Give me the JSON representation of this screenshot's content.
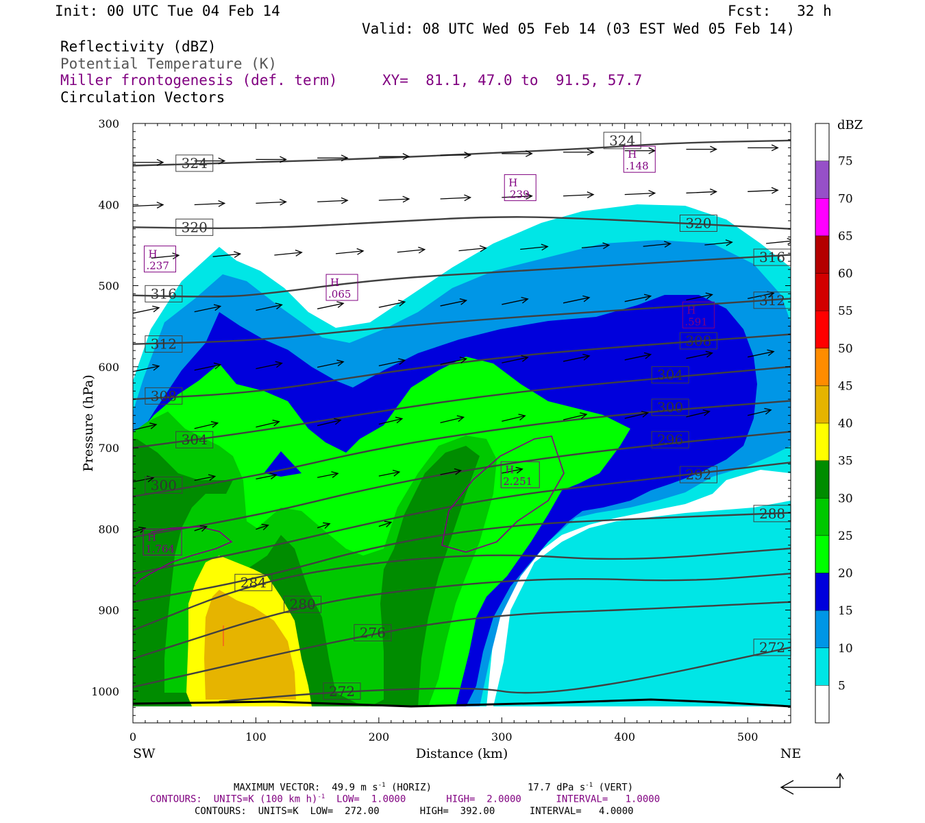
{
  "header": {
    "init": "Init: 00 UTC Tue 04 Feb 14",
    "fcst": "Fcst:   32 h",
    "valid": "Valid: 08 UTC Wed 05 Feb 14 (03 EST Wed 05 Feb 14)",
    "fields": [
      "Reflectivity (dBZ)",
      "Potential Temperature (K)",
      "Miller frontogenesis (def. term)",
      "Circulation Vectors"
    ],
    "xy": "XY=  81.1, 47.0 to  91.5, 57.7"
  },
  "colors": {
    "frontogenesis": "#800080",
    "theta": "#404040",
    "dbz_bins": [
      "#ffffff",
      "#00e6e6",
      "#0096e6",
      "#0000dc",
      "#00ff00",
      "#00c800",
      "#008c00",
      "#ffff00",
      "#e6b400",
      "#ff8c00",
      "#ff0000",
      "#d20000",
      "#b40000",
      "#ff00ff",
      "#9650c8",
      "#ffffff"
    ]
  },
  "footer": {
    "max_vector": "MAXIMUM VECTOR:  49.9 m s",
    "max_vector_h_unit": "(HORIZ)",
    "max_vector_v": "17.7 dPa s",
    "max_vector_v_unit": "(VERT)",
    "contours1": "CONTOURS:  UNITS=K (100 km h)",
    "contours1_rest": "  LOW=  1.0000       HIGH=  2.0000      INTERVAL=   1.0000",
    "contours2": "CONTOURS:  UNITS=K  LOW=  272.00       HIGH=  392.00      INTERVAL=   4.0000"
  },
  "chart_data": {
    "type": "cross-section",
    "xlabel": "Distance (km)",
    "ylabel": "Pressure (hPa)",
    "xlim": [
      0,
      535
    ],
    "ylim": [
      300,
      1040
    ],
    "x_ticks": [
      0,
      100,
      200,
      300,
      400,
      500
    ],
    "y_ticks": [
      300,
      400,
      500,
      600,
      700,
      800,
      900,
      1000
    ],
    "x_end_labels": [
      "SW",
      "NE"
    ],
    "colorbar": {
      "title": "dBZ",
      "levels": [
        5,
        10,
        15,
        20,
        25,
        30,
        35,
        40,
        45,
        50,
        55,
        60,
        65,
        70,
        75
      ]
    },
    "theta_contours": [
      {
        "value": 324,
        "label_pts": [
          [
            50,
            349
          ],
          [
            398,
            321
          ]
        ],
        "points": [
          [
            0,
            352
          ],
          [
            100,
            348
          ],
          [
            200,
            343
          ],
          [
            300,
            336
          ],
          [
            380,
            330
          ],
          [
            440,
            324
          ],
          [
            535,
            321
          ]
        ]
      },
      {
        "value": 320,
        "label_pts": [
          [
            50,
            428
          ],
          [
            460,
            423
          ]
        ],
        "points": [
          [
            0,
            428
          ],
          [
            100,
            430
          ],
          [
            200,
            422
          ],
          [
            300,
            414
          ],
          [
            380,
            418
          ],
          [
            460,
            424
          ],
          [
            535,
            430
          ]
        ]
      },
      {
        "value": 316,
        "label_pts": [
          [
            25,
            510
          ],
          [
            520,
            465
          ]
        ],
        "points": [
          [
            0,
            512
          ],
          [
            60,
            514
          ],
          [
            100,
            512
          ],
          [
            200,
            492
          ],
          [
            300,
            483
          ],
          [
            400,
            474
          ],
          [
            535,
            462
          ]
        ]
      },
      {
        "value": 312,
        "label_pts": [
          [
            25,
            572
          ],
          [
            520,
            518
          ]
        ],
        "points": [
          [
            0,
            572
          ],
          [
            100,
            568
          ],
          [
            200,
            552
          ],
          [
            300,
            540
          ],
          [
            400,
            530
          ],
          [
            535,
            516
          ]
        ]
      },
      {
        "value": 308,
        "label_pts": [
          [
            25,
            636
          ],
          [
            460,
            568
          ]
        ],
        "points": [
          [
            0,
            640
          ],
          [
            100,
            632
          ],
          [
            200,
            608
          ],
          [
            300,
            588
          ],
          [
            400,
            575
          ],
          [
            535,
            560
          ]
        ]
      },
      {
        "value": 304,
        "label_pts": [
          [
            50,
            690
          ],
          [
            437,
            610
          ]
        ],
        "points": [
          [
            0,
            700
          ],
          [
            100,
            680
          ],
          [
            200,
            655
          ],
          [
            300,
            633
          ],
          [
            400,
            618
          ],
          [
            535,
            600
          ]
        ]
      },
      {
        "value": 300,
        "label_pts": [
          [
            25,
            746
          ],
          [
            437,
            650
          ]
        ],
        "points": [
          [
            0,
            760
          ],
          [
            100,
            735
          ],
          [
            200,
            700
          ],
          [
            300,
            676
          ],
          [
            400,
            658
          ],
          [
            535,
            642
          ]
        ]
      },
      {
        "value": 296,
        "label_pts": [
          [
            437,
            690
          ]
        ],
        "points": [
          [
            0,
            810
          ],
          [
            100,
            784
          ],
          [
            200,
            747
          ],
          [
            300,
            720
          ],
          [
            400,
            700
          ],
          [
            535,
            680
          ]
        ]
      },
      {
        "value": 292,
        "label_pts": [
          [
            460,
            733
          ]
        ],
        "points": [
          [
            0,
            855
          ],
          [
            100,
            826
          ],
          [
            200,
            790
          ],
          [
            300,
            760
          ],
          [
            400,
            742
          ],
          [
            535,
            718
          ]
        ]
      },
      {
        "value": 288,
        "label_pts": [
          [
            520,
            781
          ]
        ],
        "points": [
          [
            0,
            890
          ],
          [
            100,
            862
          ],
          [
            200,
            820
          ],
          [
            300,
            796
          ],
          [
            400,
            788
          ],
          [
            535,
            780
          ]
        ]
      },
      {
        "value": 284,
        "label_pts": [
          [
            98,
            866
          ]
        ],
        "points": [
          [
            0,
            925
          ],
          [
            98,
            866
          ],
          [
            200,
            840
          ],
          [
            300,
            830
          ],
          [
            400,
            840
          ],
          [
            535,
            824
          ]
        ]
      },
      {
        "value": 280,
        "label_pts": [
          [
            138,
            893
          ]
        ],
        "points": [
          [
            0,
            960
          ],
          [
            138,
            893
          ],
          [
            250,
            870
          ],
          [
            350,
            860
          ],
          [
            450,
            865
          ],
          [
            535,
            855
          ]
        ]
      },
      {
        "value": 276,
        "label_pts": [
          [
            195,
            928
          ]
        ],
        "points": [
          [
            0,
            995
          ],
          [
            195,
            928
          ],
          [
            300,
            905
          ],
          [
            400,
            900
          ],
          [
            535,
            890
          ]
        ]
      },
      {
        "value": 272,
        "label_pts": [
          [
            170,
            1000
          ],
          [
            520,
            946
          ]
        ],
        "points": [
          [
            70,
            1013
          ],
          [
            170,
            1000
          ],
          [
            280,
            995
          ],
          [
            320,
            1005
          ],
          [
            400,
            990
          ],
          [
            535,
            946
          ]
        ]
      }
    ],
    "frontogenesis_maxima": [
      {
        "label": "H",
        "value": ".237",
        "x": 22,
        "p": 468
      },
      {
        "label": "H",
        "value": ".065",
        "x": 170,
        "p": 503
      },
      {
        "label": "H",
        "value": ".239",
        "x": 315,
        "p": 380
      },
      {
        "label": "H",
        "value": ".148",
        "x": 412,
        "p": 345
      },
      {
        "label": "H",
        "value": ".591",
        "x": 460,
        "p": 537
      },
      {
        "label": "H",
        "value": "2.251",
        "x": 315,
        "p": 734
      },
      {
        "label": "H",
        "value": "1.764",
        "x": 24,
        "p": 817
      }
    ],
    "max_vector_horiz": 49.9,
    "max_vector_vert": 17.7
  }
}
